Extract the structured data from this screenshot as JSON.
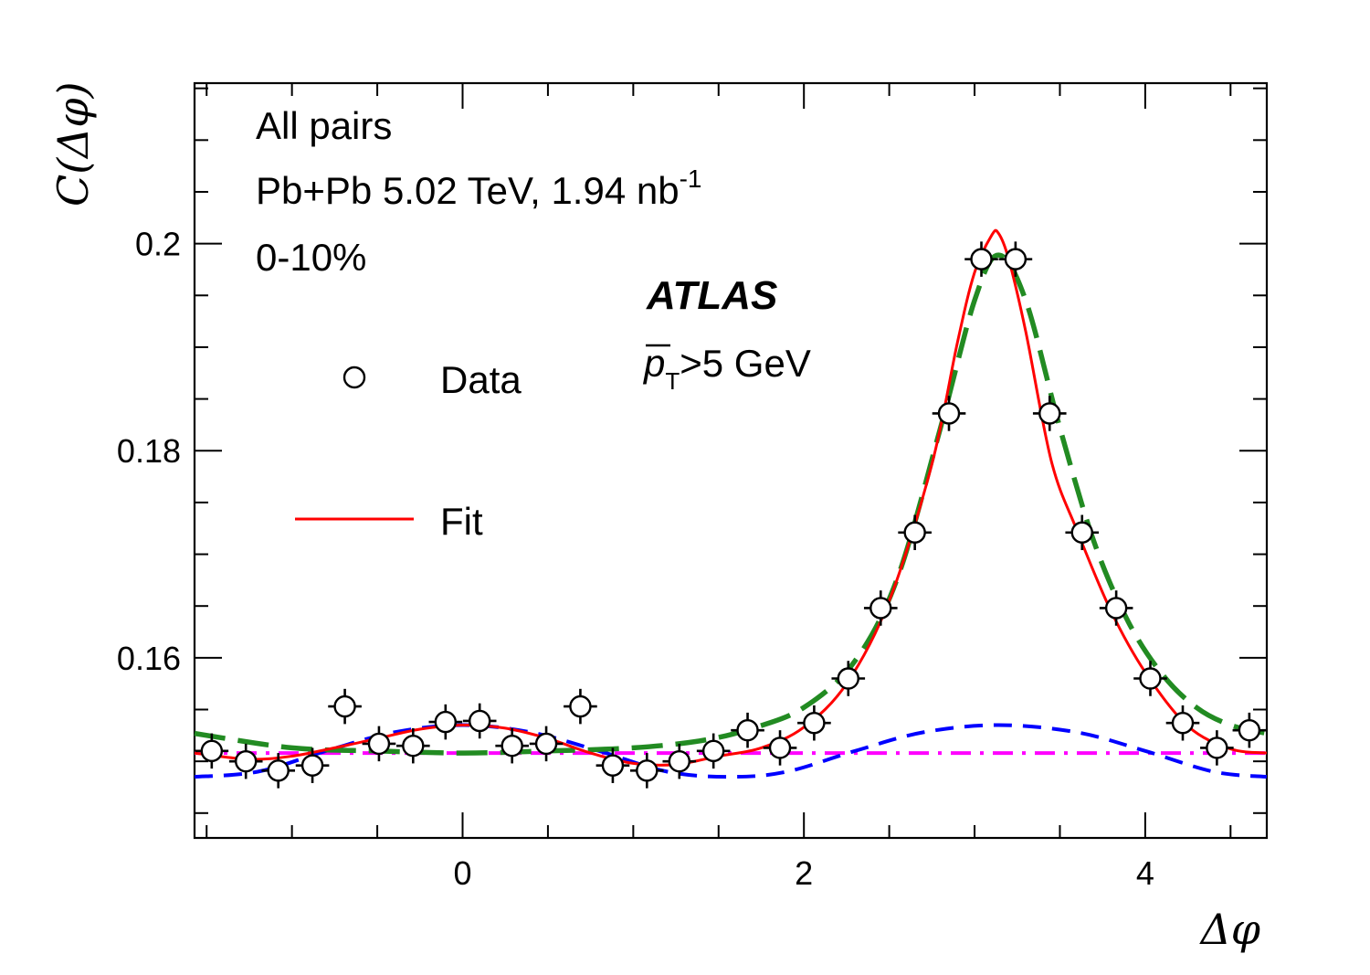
{
  "chart_data": {
    "type": "scatter",
    "xlabel": "Δφ",
    "ylabel": "C(Δφ)",
    "xlim": [
      -1.5708,
      4.7124
    ],
    "ylim": [
      0.1426,
      0.2155
    ],
    "x_ticks": [
      0,
      2,
      4
    ],
    "y_ticks": [
      0.16,
      0.18,
      0.2
    ],
    "x_tick_labels": [
      "0",
      "2",
      "4"
    ],
    "y_tick_labels": [
      "0.16",
      "0.18",
      "0.2"
    ],
    "annotations": {
      "pairs": "All pairs",
      "system": "Pb+Pb 5.02 TeV, 1.94 nb",
      "system_sup": "-1",
      "centrality": "0-10%",
      "experiment": "ATLAS",
      "pt_symbol": "p",
      "pt_sub": "T",
      "pt_cut": ">5 GeV"
    },
    "legend": {
      "data_label": "Data",
      "fit_label": "Fit"
    },
    "colors": {
      "fit": "#ff0000",
      "near_side": "#228b22",
      "flow": "#0000ff",
      "pedestal": "#ff00ff",
      "data": "#000000"
    },
    "data": {
      "name": "Data",
      "x": [
        -1.47,
        -1.27,
        -1.08,
        -0.88,
        -0.69,
        -0.49,
        -0.29,
        -0.1,
        0.1,
        0.29,
        0.49,
        0.69,
        0.88,
        1.08,
        1.27,
        1.47,
        1.67,
        1.86,
        2.06,
        2.26,
        2.45,
        2.65,
        2.85,
        3.04,
        3.24,
        3.44,
        3.63,
        3.83,
        4.03,
        4.22,
        4.42,
        4.61
      ],
      "y": [
        0.151,
        0.15,
        0.1491,
        0.1496,
        0.1553,
        0.1517,
        0.1515,
        0.1538,
        0.1539,
        0.1515,
        0.1517,
        0.1553,
        0.1496,
        0.1491,
        0.15,
        0.151,
        0.153,
        0.1513,
        0.1537,
        0.158,
        0.1648,
        0.1721,
        0.1836,
        0.1985,
        0.1985,
        0.1836,
        0.1721,
        0.1648,
        0.158,
        0.1537,
        0.1513,
        0.153
      ],
      "yerr": 0.0017,
      "xerr": 0.098
    },
    "fit": {
      "name": "Fit",
      "x": [
        -1.571,
        -1.25,
        -1.0,
        -0.75,
        -0.5,
        -0.25,
        0.0,
        0.25,
        0.5,
        0.75,
        1.0,
        1.25,
        1.5,
        1.75,
        2.0,
        2.25,
        2.5,
        2.75,
        2.9,
        3.0,
        3.1,
        3.14,
        3.2,
        3.3,
        3.45,
        3.6,
        3.8,
        4.0,
        4.25,
        4.5,
        4.712
      ],
      "y": [
        0.1508,
        0.1502,
        0.1505,
        0.1513,
        0.1522,
        0.1531,
        0.1535,
        0.1532,
        0.1522,
        0.1508,
        0.1498,
        0.1497,
        0.1505,
        0.1513,
        0.1533,
        0.1575,
        0.1655,
        0.1787,
        0.1905,
        0.1972,
        0.2008,
        0.201,
        0.1985,
        0.1915,
        0.179,
        0.1723,
        0.1645,
        0.1586,
        0.1534,
        0.1512,
        0.1508
      ]
    },
    "near_side": {
      "x": [
        -1.571,
        -1.0,
        -0.5,
        0.0,
        0.5,
        1.0,
        1.4,
        1.7,
        2.0,
        2.3,
        2.55,
        2.8,
        3.0,
        3.14,
        3.3,
        3.5,
        3.7,
        3.9,
        4.1,
        4.3,
        4.5,
        4.712
      ],
      "y": [
        0.1527,
        0.1513,
        0.151,
        0.1508,
        0.151,
        0.1513,
        0.152,
        0.1532,
        0.1552,
        0.1597,
        0.1678,
        0.1822,
        0.1945,
        0.1989,
        0.1945,
        0.1822,
        0.1712,
        0.1635,
        0.1584,
        0.1552,
        0.1535,
        0.1527
      ]
    },
    "flow": {
      "x": [
        -1.571,
        -1.2,
        -0.8,
        -0.4,
        0.0,
        0.4,
        0.8,
        1.2,
        1.57,
        1.9,
        2.3,
        2.7,
        3.14,
        3.6,
        4.0,
        4.4,
        4.712
      ],
      "y": [
        0.1485,
        0.149,
        0.151,
        0.1528,
        0.1535,
        0.1528,
        0.151,
        0.149,
        0.1485,
        0.149,
        0.151,
        0.1528,
        0.1535,
        0.1528,
        0.151,
        0.149,
        0.1485
      ]
    },
    "pedestal": {
      "y": 0.1508
    }
  }
}
